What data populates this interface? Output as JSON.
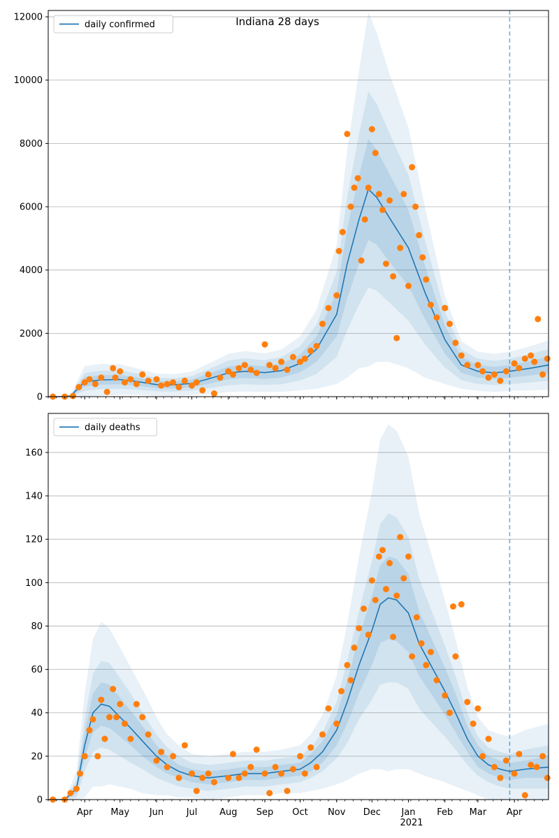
{
  "figure": {
    "title": "Indiana 28 days",
    "year_label": "2021"
  },
  "colors": {
    "line": "#1f77b4",
    "points": "#ff7f0e",
    "band": "#1f77b4",
    "grid": "#b0b0b0",
    "forecast_line": "#1f77b4"
  },
  "chart_data": [
    {
      "type": "line",
      "legend": "daily confirmed",
      "legend_position": "top-left",
      "grid": "horizontal",
      "ylim": [
        0,
        12200
      ],
      "yticks": [
        0,
        2000,
        4000,
        6000,
        8000,
        10000,
        12000
      ],
      "xlim": [
        "2020-03-01",
        "2021-04-30"
      ],
      "forecast_marker": "2021-03-28",
      "model_line": {
        "x": [
          "2020-03-01",
          "2020-03-10",
          "2020-03-20",
          "2020-04-01",
          "2020-04-15",
          "2020-05-01",
          "2020-05-15",
          "2020-06-01",
          "2020-06-15",
          "2020-07-01",
          "2020-07-15",
          "2020-08-01",
          "2020-08-15",
          "2020-09-01",
          "2020-09-15",
          "2020-10-01",
          "2020-10-15",
          "2020-11-01",
          "2020-11-10",
          "2020-11-20",
          "2020-11-28",
          "2020-12-05",
          "2020-12-15",
          "2021-01-01",
          "2021-01-15",
          "2021-02-01",
          "2021-02-15",
          "2021-03-01",
          "2021-03-15",
          "2021-03-28",
          "2021-04-15",
          "2021-04-30"
        ],
        "y": [
          0,
          0,
          20,
          470,
          530,
          540,
          480,
          380,
          370,
          420,
          560,
          750,
          800,
          760,
          820,
          1050,
          1500,
          2600,
          4200,
          5600,
          6550,
          6300,
          5700,
          4700,
          3300,
          1800,
          1000,
          800,
          750,
          800,
          900,
          1000
        ]
      },
      "band_inner_offsets": [
        0,
        0,
        10,
        150,
        150,
        150,
        130,
        110,
        110,
        120,
        160,
        200,
        210,
        200,
        220,
        280,
        400,
        700,
        1100,
        1400,
        1600,
        1500,
        1400,
        1200,
        850,
        450,
        250,
        200,
        190,
        200,
        230,
        260
      ],
      "band_mid_offsets": [
        0,
        0,
        20,
        280,
        290,
        290,
        260,
        210,
        210,
        230,
        300,
        390,
        410,
        390,
        430,
        540,
        780,
        1350,
        2100,
        2700,
        3100,
        2950,
        2700,
        2300,
        1650,
        880,
        480,
        400,
        380,
        400,
        450,
        500
      ],
      "band_outer_offsets": [
        0,
        0,
        40,
        500,
        500,
        480,
        420,
        350,
        340,
        370,
        480,
        600,
        640,
        610,
        670,
        850,
        1250,
        2200,
        3600,
        4700,
        5600,
        5200,
        4600,
        3800,
        2700,
        1400,
        750,
        620,
        600,
        620,
        700,
        780
      ],
      "points": {
        "x": [
          "2020-03-05",
          "2020-03-15",
          "2020-03-22",
          "2020-03-27",
          "2020-04-01",
          "2020-04-05",
          "2020-04-10",
          "2020-04-15",
          "2020-04-20",
          "2020-04-25",
          "2020-04-27",
          "2020-05-01",
          "2020-05-05",
          "2020-05-10",
          "2020-05-15",
          "2020-05-20",
          "2020-05-25",
          "2020-06-01",
          "2020-06-05",
          "2020-06-10",
          "2020-06-15",
          "2020-06-20",
          "2020-06-25",
          "2020-07-01",
          "2020-07-05",
          "2020-07-10",
          "2020-07-15",
          "2020-07-20",
          "2020-07-25",
          "2020-08-01",
          "2020-08-05",
          "2020-08-10",
          "2020-08-15",
          "2020-08-20",
          "2020-08-25",
          "2020-09-01",
          "2020-09-05",
          "2020-09-10",
          "2020-09-15",
          "2020-09-20",
          "2020-09-25",
          "2020-10-01",
          "2020-10-05",
          "2020-10-10",
          "2020-10-15",
          "2020-10-20",
          "2020-10-25",
          "2020-11-01",
          "2020-11-03",
          "2020-11-06",
          "2020-11-10",
          "2020-11-13",
          "2020-11-16",
          "2020-11-19",
          "2020-11-22",
          "2020-11-25",
          "2020-11-28",
          "2020-12-01",
          "2020-12-04",
          "2020-12-07",
          "2020-12-10",
          "2020-12-13",
          "2020-12-16",
          "2020-12-19",
          "2020-12-22",
          "2020-12-25",
          "2020-12-28",
          "2021-01-01",
          "2021-01-04",
          "2021-01-07",
          "2021-01-10",
          "2021-01-13",
          "2021-01-16",
          "2021-01-20",
          "2021-01-25",
          "2021-02-01",
          "2021-02-05",
          "2021-02-10",
          "2021-02-15",
          "2021-02-20",
          "2021-03-01",
          "2021-03-05",
          "2021-03-10",
          "2021-03-15",
          "2021-03-20",
          "2021-03-25",
          "2021-04-01",
          "2021-04-05",
          "2021-04-10",
          "2021-04-15",
          "2021-04-18",
          "2021-04-21",
          "2021-04-25",
          "2021-04-29"
        ],
        "y": [
          0,
          0,
          20,
          300,
          450,
          550,
          400,
          600,
          150,
          900,
          600,
          800,
          450,
          550,
          400,
          700,
          500,
          550,
          350,
          400,
          450,
          300,
          500,
          350,
          450,
          200,
          700,
          100,
          600,
          800,
          700,
          900,
          1000,
          850,
          750,
          1650,
          1000,
          900,
          1100,
          850,
          1250,
          1100,
          1200,
          1450,
          1600,
          2300,
          2800,
          3200,
          4600,
          5200,
          8300,
          6000,
          6600,
          6900,
          4300,
          5600,
          6600,
          8450,
          7700,
          6400,
          5900,
          4200,
          6200,
          3800,
          1850,
          4700,
          6400,
          3500,
          7250,
          6000,
          5100,
          4400,
          3700,
          2900,
          2500,
          2800,
          2300,
          1700,
          1300,
          1000,
          1000,
          800,
          600,
          700,
          500,
          800,
          1050,
          900,
          1200,
          1300,
          1100,
          2450,
          700,
          1200
        ]
      },
      "xticks": [
        "Apr",
        "May",
        "Jun",
        "Jul",
        "Aug",
        "Sep",
        "Oct",
        "Nov",
        "Dec",
        "Jan",
        "Feb",
        "Mar",
        "Apr"
      ]
    },
    {
      "type": "line",
      "legend": "daily deaths",
      "legend_position": "top-left",
      "grid": "horizontal",
      "ylim": [
        0,
        178
      ],
      "yticks": [
        0,
        20,
        40,
        60,
        80,
        100,
        120,
        140,
        160
      ],
      "xlim": [
        "2020-03-01",
        "2021-04-30"
      ],
      "forecast_marker": "2021-03-28",
      "model_line": {
        "x": [
          "2020-03-01",
          "2020-03-15",
          "2020-03-25",
          "2020-04-01",
          "2020-04-08",
          "2020-04-15",
          "2020-04-22",
          "2020-05-01",
          "2020-05-10",
          "2020-05-20",
          "2020-06-01",
          "2020-06-10",
          "2020-06-20",
          "2020-07-01",
          "2020-07-15",
          "2020-08-01",
          "2020-08-15",
          "2020-09-01",
          "2020-09-15",
          "2020-10-01",
          "2020-10-10",
          "2020-10-20",
          "2020-11-01",
          "2020-11-10",
          "2020-11-20",
          "2020-12-01",
          "2020-12-08",
          "2020-12-15",
          "2020-12-22",
          "2021-01-01",
          "2021-01-10",
          "2021-01-20",
          "2021-02-01",
          "2021-02-10",
          "2021-02-20",
          "2021-03-01",
          "2021-03-10",
          "2021-03-20",
          "2021-03-28",
          "2021-04-10",
          "2021-04-30"
        ],
        "y": [
          0,
          0,
          5,
          25,
          40,
          44,
          43,
          38,
          33,
          27,
          20,
          16,
          13,
          11,
          10,
          11,
          12,
          12,
          13,
          14,
          17,
          22,
          32,
          45,
          62,
          78,
          90,
          93,
          92,
          86,
          72,
          62,
          50,
          40,
          28,
          20,
          16,
          14,
          13,
          14,
          15
        ]
      },
      "band_inner_offsets": [
        0,
        0,
        2,
        6,
        9,
        10,
        10,
        9,
        8,
        7,
        5,
        4,
        3,
        3,
        3,
        3,
        3,
        3,
        3,
        3,
        4,
        5,
        7,
        10,
        13,
        16,
        18,
        19,
        19,
        18,
        15,
        13,
        11,
        9,
        6,
        5,
        4,
        4,
        4,
        4,
        5
      ],
      "band_mid_offsets": [
        0,
        0,
        4,
        12,
        18,
        20,
        20,
        18,
        16,
        13,
        10,
        8,
        7,
        6,
        6,
        6,
        6,
        6,
        6,
        6,
        7,
        9,
        13,
        19,
        25,
        32,
        37,
        39,
        38,
        35,
        30,
        26,
        21,
        17,
        12,
        9,
        8,
        8,
        8,
        9,
        10
      ],
      "band_outer_offsets": [
        0,
        0,
        8,
        24,
        34,
        38,
        36,
        32,
        28,
        24,
        18,
        14,
        12,
        10,
        10,
        10,
        10,
        10,
        10,
        11,
        13,
        17,
        25,
        36,
        50,
        64,
        76,
        80,
        78,
        72,
        60,
        52,
        42,
        34,
        24,
        18,
        16,
        16,
        16,
        18,
        20
      ],
      "points": {
        "x": [
          "2020-03-05",
          "2020-03-15",
          "2020-03-20",
          "2020-03-25",
          "2020-03-28",
          "2020-04-01",
          "2020-04-05",
          "2020-04-08",
          "2020-04-12",
          "2020-04-15",
          "2020-04-18",
          "2020-04-22",
          "2020-04-25",
          "2020-04-28",
          "2020-05-01",
          "2020-05-05",
          "2020-05-10",
          "2020-05-15",
          "2020-05-20",
          "2020-05-25",
          "2020-06-01",
          "2020-06-05",
          "2020-06-10",
          "2020-06-15",
          "2020-06-20",
          "2020-06-25",
          "2020-07-01",
          "2020-07-05",
          "2020-07-10",
          "2020-07-15",
          "2020-07-20",
          "2020-08-01",
          "2020-08-05",
          "2020-08-10",
          "2020-08-15",
          "2020-08-20",
          "2020-08-25",
          "2020-09-01",
          "2020-09-05",
          "2020-09-10",
          "2020-09-15",
          "2020-09-20",
          "2020-09-25",
          "2020-10-01",
          "2020-10-05",
          "2020-10-10",
          "2020-10-15",
          "2020-10-20",
          "2020-10-25",
          "2020-11-01",
          "2020-11-05",
          "2020-11-10",
          "2020-11-13",
          "2020-11-16",
          "2020-11-20",
          "2020-11-24",
          "2020-11-28",
          "2020-12-01",
          "2020-12-04",
          "2020-12-07",
          "2020-12-10",
          "2020-12-13",
          "2020-12-16",
          "2020-12-19",
          "2020-12-22",
          "2020-12-25",
          "2020-12-28",
          "2021-01-01",
          "2021-01-04",
          "2021-01-08",
          "2021-01-12",
          "2021-01-16",
          "2021-01-20",
          "2021-01-25",
          "2021-02-01",
          "2021-02-05",
          "2021-02-08",
          "2021-02-10",
          "2021-02-15",
          "2021-02-20",
          "2021-02-25",
          "2021-03-01",
          "2021-03-05",
          "2021-03-10",
          "2021-03-15",
          "2021-03-20",
          "2021-03-25",
          "2021-04-01",
          "2021-04-05",
          "2021-04-10",
          "2021-04-15",
          "2021-04-20",
          "2021-04-25",
          "2021-04-29"
        ],
        "y": [
          0,
          0,
          3,
          5,
          12,
          20,
          32,
          37,
          20,
          46,
          28,
          38,
          51,
          38,
          44,
          35,
          28,
          44,
          38,
          30,
          18,
          22,
          15,
          20,
          10,
          25,
          12,
          4,
          10,
          12,
          8,
          10,
          21,
          10,
          12,
          15,
          23,
          12,
          3,
          15,
          12,
          4,
          14,
          20,
          12,
          24,
          15,
          30,
          42,
          35,
          50,
          62,
          55,
          70,
          79,
          88,
          76,
          101,
          92,
          112,
          115,
          97,
          109,
          75,
          94,
          121,
          102,
          112,
          66,
          84,
          72,
          62,
          68,
          55,
          48,
          40,
          89,
          66,
          90,
          45,
          35,
          42,
          20,
          28,
          15,
          10,
          18,
          12,
          21,
          2,
          16,
          15,
          20,
          10
        ]
      },
      "xticks": [
        "Apr",
        "May",
        "Jun",
        "Jul",
        "Aug",
        "Sep",
        "Oct",
        "Nov",
        "Dec",
        "Jan",
        "Feb",
        "Mar",
        "Apr"
      ]
    }
  ]
}
